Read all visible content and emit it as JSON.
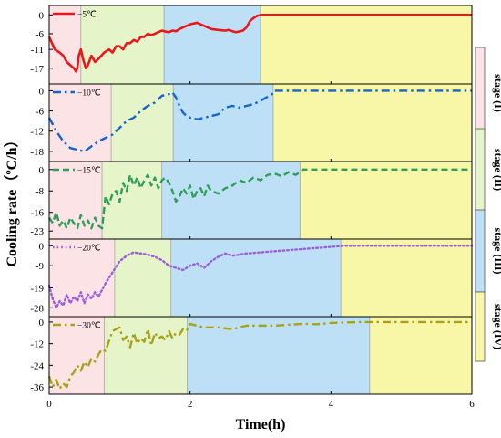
{
  "chart_data": {
    "type": "line",
    "xlabel": "Time(h)",
    "ylabel": "Cooling rate（ºC/h）",
    "xlim": [
      0,
      6
    ],
    "x_ticks": [
      "0",
      "2",
      "4",
      "6"
    ],
    "stage_labels": [
      "stage (I)",
      "stage (II)",
      "stage (III)",
      "stage (IV)"
    ],
    "stage_colors": [
      "#fbe3e6",
      "#e5f4c9",
      "#bde0f7",
      "#f8f7a8"
    ],
    "panels": [
      {
        "series_name": "−5℃",
        "color": "#e8191c",
        "style": "solid",
        "ylim": [
          -22,
          3
        ],
        "y_ticks": [
          "0",
          "-6",
          "-11",
          "-17"
        ],
        "y_tick_values": [
          0,
          -6,
          -11,
          -17
        ],
        "stage_bounds": [
          0,
          0.45,
          1.63,
          3.0,
          6
        ],
        "x": [
          0,
          0.08,
          0.15,
          0.2,
          0.25,
          0.3,
          0.35,
          0.38,
          0.4,
          0.42,
          0.45,
          0.48,
          0.52,
          0.55,
          0.6,
          0.65,
          0.7,
          0.78,
          0.85,
          0.9,
          0.95,
          1.0,
          1.05,
          1.1,
          1.15,
          1.2,
          1.25,
          1.3,
          1.35,
          1.4,
          1.45,
          1.5,
          1.55,
          1.6,
          1.65,
          1.7,
          1.75,
          1.8,
          1.85,
          1.9,
          2.0,
          2.1,
          2.2,
          2.3,
          2.4,
          2.5,
          2.55,
          2.6,
          2.65,
          2.7,
          2.75,
          2.8,
          2.85,
          2.9,
          2.95,
          3.0,
          3.1,
          3.5,
          4,
          5,
          6
        ],
        "y": [
          -7,
          -11,
          -12,
          -13,
          -15,
          -16,
          -17,
          -18,
          -17,
          -13,
          -11,
          -14,
          -17,
          -16,
          -13,
          -15,
          -14,
          -12,
          -11,
          -12,
          -10,
          -10,
          -11,
          -9,
          -9,
          -8,
          -8.5,
          -7,
          -7,
          -6,
          -6.5,
          -6,
          -5.5,
          -5,
          -5.3,
          -5.5,
          -5,
          -5.2,
          -4.5,
          -4,
          -3,
          -2.5,
          -3.5,
          -4.5,
          -4.8,
          -5,
          -4.8,
          -5.2,
          -5.5,
          -5.3,
          -5,
          -4,
          -2,
          -1,
          -0.3,
          0,
          0,
          0,
          0,
          0,
          0
        ]
      },
      {
        "series_name": "−10℃",
        "color": "#1566c8",
        "style": "dashdot",
        "ylim": [
          -21,
          2
        ],
        "y_ticks": [
          "0",
          "-6",
          "-12",
          "-18"
        ],
        "y_tick_values": [
          0,
          -6,
          -12,
          -18
        ],
        "stage_bounds": [
          0,
          0.88,
          1.76,
          3.18,
          6
        ],
        "x": [
          0,
          0.05,
          0.1,
          0.2,
          0.3,
          0.4,
          0.5,
          0.6,
          0.7,
          0.8,
          0.9,
          1.0,
          1.1,
          1.2,
          1.3,
          1.4,
          1.5,
          1.6,
          1.7,
          1.75,
          1.8,
          1.85,
          1.9,
          1.95,
          2.0,
          2.05,
          2.1,
          2.2,
          2.3,
          2.4,
          2.5,
          2.6,
          2.7,
          2.8,
          2.9,
          3.0,
          3.1,
          3.18,
          3.2,
          4,
          5,
          6
        ],
        "y": [
          -8,
          -10,
          -12,
          -15,
          -17,
          -17.5,
          -18,
          -16.5,
          -15,
          -14,
          -13,
          -11,
          -9,
          -8,
          -6,
          -4.5,
          -3.5,
          -1.5,
          -1,
          -0.5,
          -2,
          -4.5,
          -6.5,
          -7.5,
          -8,
          -8.2,
          -8.5,
          -8,
          -7.5,
          -7,
          -5,
          -4.5,
          -5,
          -4.5,
          -4,
          -3,
          -1.8,
          -0.8,
          0,
          0,
          0,
          0
        ]
      },
      {
        "series_name": "−15℃",
        "color": "#2e9e5a",
        "style": "dashed",
        "ylim": [
          -26,
          3
        ],
        "y_ticks": [
          "0",
          "-8",
          "-16",
          "-23"
        ],
        "y_tick_values": [
          0,
          -8,
          -16,
          -23
        ],
        "stage_bounds": [
          0,
          0.75,
          1.6,
          3.56,
          6
        ],
        "x": [
          0,
          0.05,
          0.1,
          0.15,
          0.2,
          0.25,
          0.3,
          0.35,
          0.4,
          0.45,
          0.5,
          0.55,
          0.6,
          0.65,
          0.7,
          0.75,
          0.8,
          0.85,
          0.9,
          0.95,
          1.0,
          1.05,
          1.1,
          1.15,
          1.2,
          1.25,
          1.3,
          1.35,
          1.4,
          1.45,
          1.5,
          1.55,
          1.6,
          1.65,
          1.7,
          1.75,
          1.8,
          1.85,
          1.9,
          1.95,
          2.0,
          2.05,
          2.1,
          2.15,
          2.2,
          2.25,
          2.3,
          2.4,
          2.5,
          2.6,
          2.7,
          2.8,
          2.9,
          3.0,
          3.1,
          3.2,
          3.3,
          3.4,
          3.5,
          3.56,
          3.6,
          4,
          5,
          6
        ],
        "y": [
          -18,
          -20,
          -16,
          -21,
          -19,
          -22,
          -18,
          -20,
          -22,
          -17,
          -21,
          -19,
          -22,
          -18,
          -21,
          -22,
          -10,
          -13,
          -9,
          -8,
          -12,
          -5,
          -8,
          -2,
          -6,
          -3,
          -7,
          -4,
          -2,
          -6,
          -3,
          -7,
          -4,
          -3,
          -5,
          -8,
          -12,
          -10,
          -7,
          -9,
          -6,
          -11,
          -8,
          -7,
          -10,
          -6,
          -8,
          -9,
          -7,
          -6,
          -4,
          -5,
          -3,
          -4,
          -2,
          -1.5,
          -2.5,
          -1,
          -2,
          -1,
          0,
          0,
          0,
          0
        ]
      },
      {
        "series_name": "−20℃",
        "color": "#9b5fd6",
        "style": "dotted",
        "ylim": [
          -32,
          3
        ],
        "y_ticks": [
          "0",
          "-9",
          "-19",
          "-28"
        ],
        "y_tick_values": [
          0,
          -9,
          -19,
          -28
        ],
        "stage_bounds": [
          0,
          0.93,
          1.73,
          4.14,
          6
        ],
        "x": [
          0,
          0.05,
          0.1,
          0.15,
          0.2,
          0.25,
          0.3,
          0.35,
          0.4,
          0.45,
          0.5,
          0.55,
          0.6,
          0.65,
          0.7,
          0.8,
          0.9,
          1.0,
          1.1,
          1.2,
          1.3,
          1.4,
          1.5,
          1.6,
          1.7,
          1.8,
          1.9,
          2.0,
          2.1,
          2.2,
          2.3,
          2.4,
          2.5,
          2.6,
          2.8,
          3.0,
          3.2,
          3.4,
          3.6,
          3.8,
          4.0,
          4.2,
          5,
          6
        ],
        "y": [
          -18,
          -24,
          -28,
          -25,
          -27,
          -22,
          -26,
          -23,
          -25,
          -21,
          -26,
          -22,
          -24,
          -21,
          -23,
          -17,
          -12,
          -7,
          -4.5,
          -3,
          -3.5,
          -4,
          -5,
          -6.5,
          -9,
          -10,
          -11,
          -9,
          -8,
          -10,
          -7,
          -5,
          -3.5,
          -4.5,
          -3.5,
          -3,
          -2.5,
          -2,
          -1.5,
          -1,
          -0.5,
          0,
          0,
          0
        ]
      },
      {
        "series_name": "−30℃",
        "color": "#a9a214",
        "style": "dashdot",
        "ylim": [
          -40,
          3
        ],
        "y_ticks": [
          "0",
          "-12",
          "-24",
          "-36"
        ],
        "y_tick_values": [
          0,
          -12,
          -24,
          -36
        ],
        "stage_bounds": [
          0,
          0.78,
          1.96,
          4.55,
          6
        ],
        "x": [
          0,
          0.05,
          0.1,
          0.15,
          0.2,
          0.25,
          0.3,
          0.35,
          0.4,
          0.45,
          0.5,
          0.55,
          0.6,
          0.65,
          0.7,
          0.75,
          0.8,
          0.9,
          1.0,
          1.05,
          1.1,
          1.15,
          1.2,
          1.25,
          1.3,
          1.35,
          1.4,
          1.45,
          1.5,
          1.55,
          1.6,
          1.65,
          1.7,
          1.75,
          1.8,
          1.85,
          1.9,
          1.95,
          2.0,
          2.2,
          2.4,
          2.6,
          2.8,
          3.0,
          3.2,
          3.4,
          3.6,
          3.8,
          4.0,
          4.2,
          4.4,
          4.6,
          5,
          6
        ],
        "y": [
          -30,
          -36,
          -32,
          -37,
          -34,
          -36,
          -30,
          -28,
          -24,
          -27,
          -22,
          -25,
          -20,
          -22,
          -18,
          -15,
          -16,
          -5,
          -3,
          -10,
          -8,
          -14,
          -6,
          -12,
          -9,
          -11,
          -4,
          -13,
          -6,
          -9,
          -8,
          -10,
          -5,
          -9,
          -6,
          -7,
          -4,
          -5,
          -1,
          -3,
          -3,
          -4,
          -2,
          -2,
          -2,
          -1.5,
          -1,
          -1.2,
          -0.5,
          -0.2,
          0,
          0,
          0,
          0
        ]
      }
    ]
  }
}
